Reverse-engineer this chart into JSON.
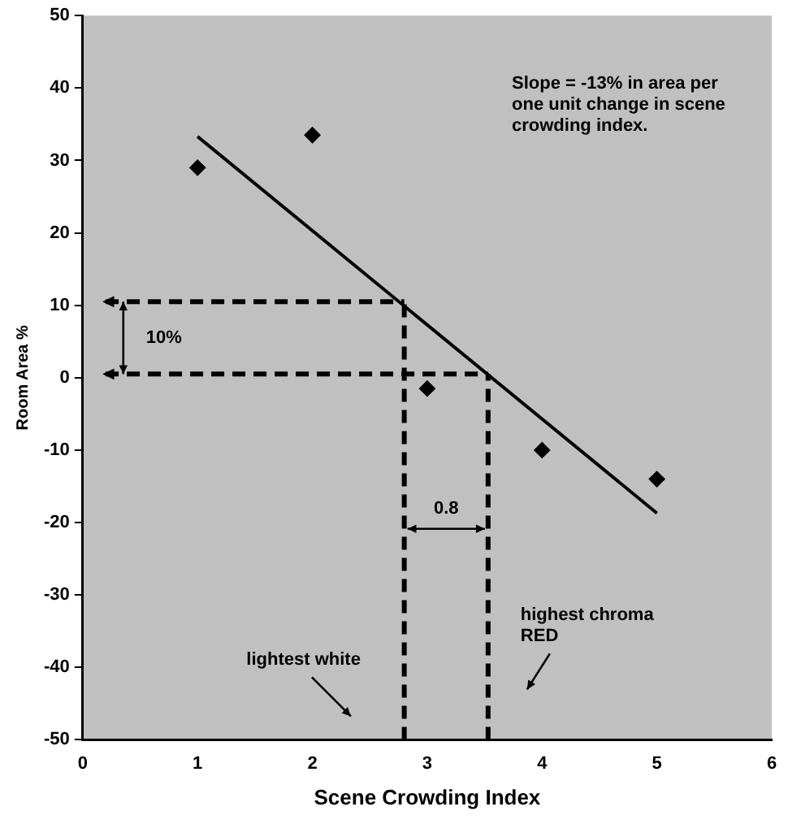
{
  "chart_data": {
    "type": "scatter",
    "xlabel": "Scene Crowding Index",
    "ylabel": "Room Area %",
    "xlim": [
      0,
      6
    ],
    "xticks": [
      0,
      1,
      2,
      3,
      4,
      5,
      6
    ],
    "ylim": [
      -50,
      50
    ],
    "yticks": [
      -50,
      -40,
      -30,
      -20,
      -10,
      0,
      10,
      20,
      30,
      40,
      50
    ],
    "grid": false,
    "legend": false,
    "series": [
      {
        "color": "#000000",
        "marker": "diamond",
        "x": [
          1,
          2,
          3,
          4,
          5
        ],
        "values": [
          29,
          33.5,
          -1.5,
          -10,
          -14
        ]
      },
      {
        "type": "line",
        "color": "#000000",
        "marker": "none",
        "line_style": "solid",
        "x": [
          1,
          5
        ],
        "values": [
          33.3,
          -18.7
        ]
      },
      {
        "type": "line",
        "color": "#000000",
        "line_style": "dashed",
        "x": [
          0.2,
          2.8
        ],
        "values": [
          10.5,
          10.5
        ]
      },
      {
        "type": "line",
        "color": "#000000",
        "line_style": "dashed",
        "x": [
          0.2,
          3.53
        ],
        "values": [
          0.5,
          0.5
        ]
      },
      {
        "type": "line",
        "color": "#000000",
        "line_style": "dashed",
        "x": [
          2.8,
          2.8
        ],
        "values": [
          -50,
          10.5
        ]
      },
      {
        "type": "line",
        "color": "#000000",
        "line_style": "dashed",
        "x": [
          3.53,
          3.53
        ],
        "values": [
          -50,
          0.5
        ]
      }
    ],
    "annotations": [
      "10%",
      "0.8",
      "lightest white",
      "highest chroma RED",
      "Slope = -13% in area per one unit change in scene crowding index."
    ]
  }
}
